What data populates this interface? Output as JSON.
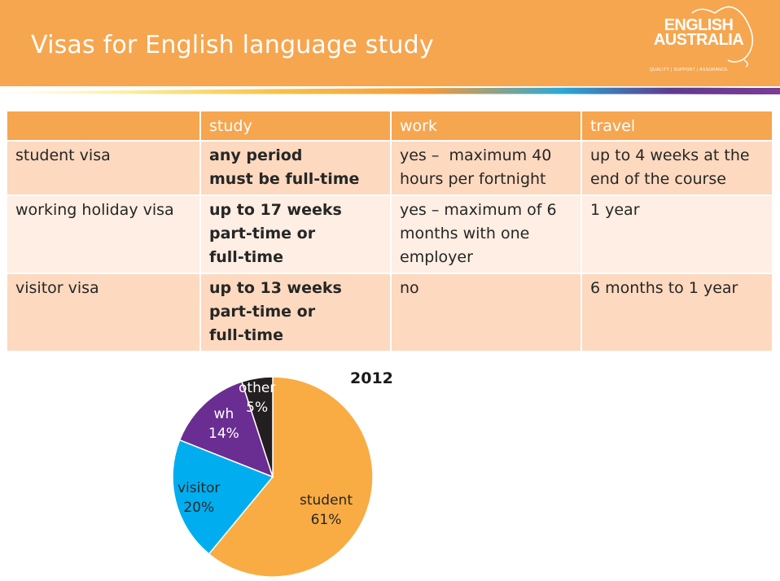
{
  "slide": {
    "title": "Visas for English language study"
  },
  "logo": {
    "line1": "ENGLISH",
    "line2": "AUSTRALIA",
    "tagline": "QUALITY | SUPPORT | ASSURANCE",
    "color": "#ffffff"
  },
  "colors": {
    "banner": "#f6a64f",
    "table_header": "#f6a64f",
    "row_dark": "#fdd9bf",
    "row_light": "#feeee3"
  },
  "table": {
    "columns": [
      "",
      "study",
      "work",
      "travel"
    ],
    "rows": [
      {
        "visa": "student visa",
        "study": [
          "any period",
          "must be full-time"
        ],
        "work": [
          "yes –  maximum 40",
          "hours per fortnight"
        ],
        "travel": [
          "up to 4 weeks at the",
          "end of the course"
        ]
      },
      {
        "visa": "working holiday visa",
        "study": [
          "up to 17 weeks",
          "part-time or",
          "full-time"
        ],
        "work": [
          "yes – maximum of 6",
          "months with one",
          "employer"
        ],
        "travel": [
          "1 year"
        ]
      },
      {
        "visa": "visitor visa",
        "study": [
          "up to 13 weeks",
          "part-time or",
          "full-time"
        ],
        "work": [
          "no"
        ],
        "travel": [
          "6 months to 1 year"
        ]
      }
    ]
  },
  "chart_data": {
    "type": "pie",
    "title": "2012",
    "slices": [
      {
        "label": "student",
        "value": 61,
        "pct_label": "61%",
        "color": "#f9ac43"
      },
      {
        "label": "visitor",
        "value": 20,
        "pct_label": "20%",
        "color": "#00aeef"
      },
      {
        "label": "wh",
        "value": 14,
        "pct_label": "14%",
        "color": "#6a2d91"
      },
      {
        "label": "other",
        "value": 5,
        "pct_label": "5%",
        "color": "#231f20"
      }
    ]
  }
}
